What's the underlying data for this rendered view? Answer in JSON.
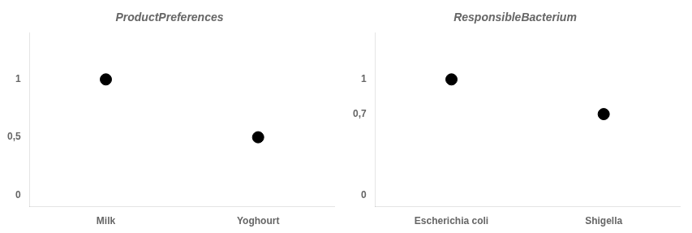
{
  "chart_data": [
    {
      "type": "scatter",
      "title": "ProductPreferences",
      "categories": [
        "Milk",
        "Yoghourt"
      ],
      "values": [
        1.0,
        0.5
      ],
      "color": "#000000",
      "marker": "circle",
      "ylim": [
        -0.1,
        1.4
      ],
      "yticks": [
        0,
        {
          "value": 0.5,
          "label": "0,5"
        },
        1
      ],
      "grid": false
    },
    {
      "type": "scatter",
      "title": "ResponsibleBacterium",
      "categories": [
        "Escherichia coli",
        "Shigella"
      ],
      "values": [
        1.0,
        0.7
      ],
      "color": "#000000",
      "marker": "circle",
      "ylim": [
        -0.1,
        1.4
      ],
      "yticks": [
        0,
        {
          "value": 0.7,
          "label": "0,7"
        },
        1
      ],
      "grid": false
    }
  ]
}
